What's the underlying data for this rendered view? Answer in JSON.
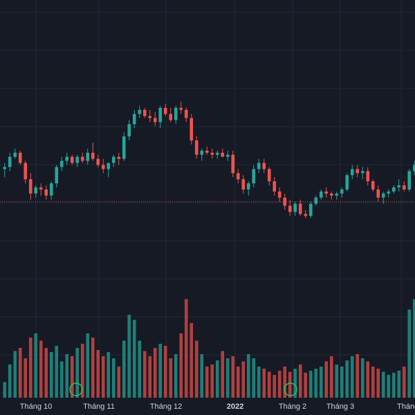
{
  "chart_data": {
    "type": "candlestick",
    "title": "",
    "x_tick_labels": [
      "Tháng 10",
      "Tháng 11",
      "Tháng 12",
      "2022",
      "Tháng 2",
      "Tháng 3",
      "Tháng"
    ],
    "x_tick_bold": [
      false,
      false,
      false,
      true,
      false,
      false,
      false
    ],
    "price_range": [
      0,
      100
    ],
    "reference_line": 52,
    "colors": {
      "background": "#161a25",
      "grid": "#232836",
      "up": "#26a69a",
      "down": "#ef5350",
      "up_volume": "#1f7f78",
      "down_volume": "#b0403f",
      "reference_line": "#c0564f",
      "marker": "#22c55e",
      "axis_text": "#d1d4dc"
    },
    "candles": [
      [
        68,
        71,
        64,
        69
      ],
      [
        69,
        76,
        67,
        74
      ],
      [
        74,
        78,
        73,
        76
      ],
      [
        76,
        77,
        70,
        71
      ],
      [
        71,
        72,
        61,
        63
      ],
      [
        63,
        66,
        53,
        56
      ],
      [
        56,
        60,
        54,
        59
      ],
      [
        59,
        61,
        55,
        58
      ],
      [
        58,
        60,
        53,
        55
      ],
      [
        55,
        62,
        53,
        61
      ],
      [
        61,
        70,
        59,
        69
      ],
      [
        69,
        74,
        67,
        72
      ],
      [
        72,
        76,
        70,
        74
      ],
      [
        74,
        75,
        70,
        71
      ],
      [
        71,
        75,
        69,
        74
      ],
      [
        74,
        76,
        71,
        72
      ],
      [
        72,
        78,
        70,
        76
      ],
      [
        76,
        81,
        72,
        73
      ],
      [
        73,
        75,
        69,
        70
      ],
      [
        70,
        73,
        66,
        68
      ],
      [
        68,
        71,
        64,
        71
      ],
      [
        71,
        75,
        69,
        74
      ],
      [
        74,
        76,
        70,
        73
      ],
      [
        73,
        86,
        72,
        84
      ],
      [
        84,
        92,
        82,
        90
      ],
      [
        90,
        97,
        88,
        95
      ],
      [
        95,
        99,
        93,
        97
      ],
      [
        97,
        98,
        93,
        94
      ],
      [
        94,
        97,
        91,
        93
      ],
      [
        93,
        96,
        89,
        91
      ],
      [
        91,
        99,
        88,
        98
      ],
      [
        98,
        100,
        94,
        95
      ],
      [
        95,
        98,
        91,
        92
      ],
      [
        92,
        99,
        90,
        98
      ],
      [
        98,
        101,
        95,
        97
      ],
      [
        97,
        98,
        91,
        93
      ],
      [
        93,
        95,
        80,
        82
      ],
      [
        82,
        84,
        73,
        75
      ],
      [
        75,
        78,
        72,
        77
      ],
      [
        77,
        79,
        75,
        76
      ],
      [
        76,
        78,
        73,
        75
      ],
      [
        75,
        77,
        73,
        76
      ],
      [
        76,
        78,
        74,
        74
      ],
      [
        74,
        77,
        72,
        75
      ],
      [
        75,
        77,
        64,
        66
      ],
      [
        66,
        68,
        61,
        63
      ],
      [
        63,
        65,
        56,
        58
      ],
      [
        58,
        62,
        55,
        61
      ],
      [
        61,
        70,
        59,
        68
      ],
      [
        68,
        73,
        66,
        71
      ],
      [
        71,
        73,
        66,
        68
      ],
      [
        68,
        69,
        60,
        62
      ],
      [
        62,
        64,
        55,
        57
      ],
      [
        57,
        59,
        52,
        54
      ],
      [
        54,
        56,
        48,
        50
      ],
      [
        50,
        53,
        45,
        47
      ],
      [
        47,
        52,
        45,
        51
      ],
      [
        51,
        53,
        45,
        46
      ],
      [
        46,
        48,
        44,
        45
      ],
      [
        45,
        52,
        44,
        51
      ],
      [
        51,
        55,
        50,
        54
      ],
      [
        54,
        58,
        53,
        57
      ],
      [
        57,
        59,
        54,
        56
      ],
      [
        56,
        57,
        53,
        55
      ],
      [
        55,
        57,
        53,
        56
      ],
      [
        56,
        59,
        54,
        58
      ],
      [
        58,
        66,
        57,
        65
      ],
      [
        65,
        70,
        63,
        68
      ],
      [
        68,
        70,
        64,
        66
      ],
      [
        66,
        69,
        63,
        67
      ],
      [
        67,
        69,
        60,
        62
      ],
      [
        62,
        63,
        57,
        58
      ],
      [
        58,
        60,
        52,
        54
      ],
      [
        54,
        57,
        51,
        56
      ],
      [
        56,
        58,
        54,
        57
      ],
      [
        57,
        60,
        56,
        59
      ],
      [
        59,
        63,
        57,
        60
      ],
      [
        60,
        62,
        57,
        58
      ],
      [
        58,
        68,
        57,
        67
      ],
      [
        67,
        72,
        65,
        70
      ]
    ],
    "volume": [
      0.15,
      0.32,
      0.45,
      0.48,
      0.38,
      0.58,
      0.62,
      0.55,
      0.48,
      0.44,
      0.5,
      0.35,
      0.42,
      0.4,
      0.48,
      0.52,
      0.62,
      0.58,
      0.46,
      0.4,
      0.44,
      0.38,
      0.3,
      0.55,
      0.8,
      0.75,
      0.55,
      0.45,
      0.4,
      0.48,
      0.52,
      0.5,
      0.38,
      0.42,
      0.62,
      0.95,
      0.72,
      0.55,
      0.42,
      0.3,
      0.32,
      0.36,
      0.45,
      0.38,
      0.4,
      0.3,
      0.35,
      0.42,
      0.38,
      0.3,
      0.28,
      0.25,
      0.22,
      0.26,
      0.3,
      0.25,
      0.28,
      0.32,
      0.24,
      0.26,
      0.28,
      0.3,
      0.35,
      0.4,
      0.32,
      0.3,
      0.36,
      0.4,
      0.42,
      0.38,
      0.35,
      0.3,
      0.28,
      0.25,
      0.22,
      0.24,
      0.26,
      0.3,
      0.85,
      0.95
    ]
  }
}
